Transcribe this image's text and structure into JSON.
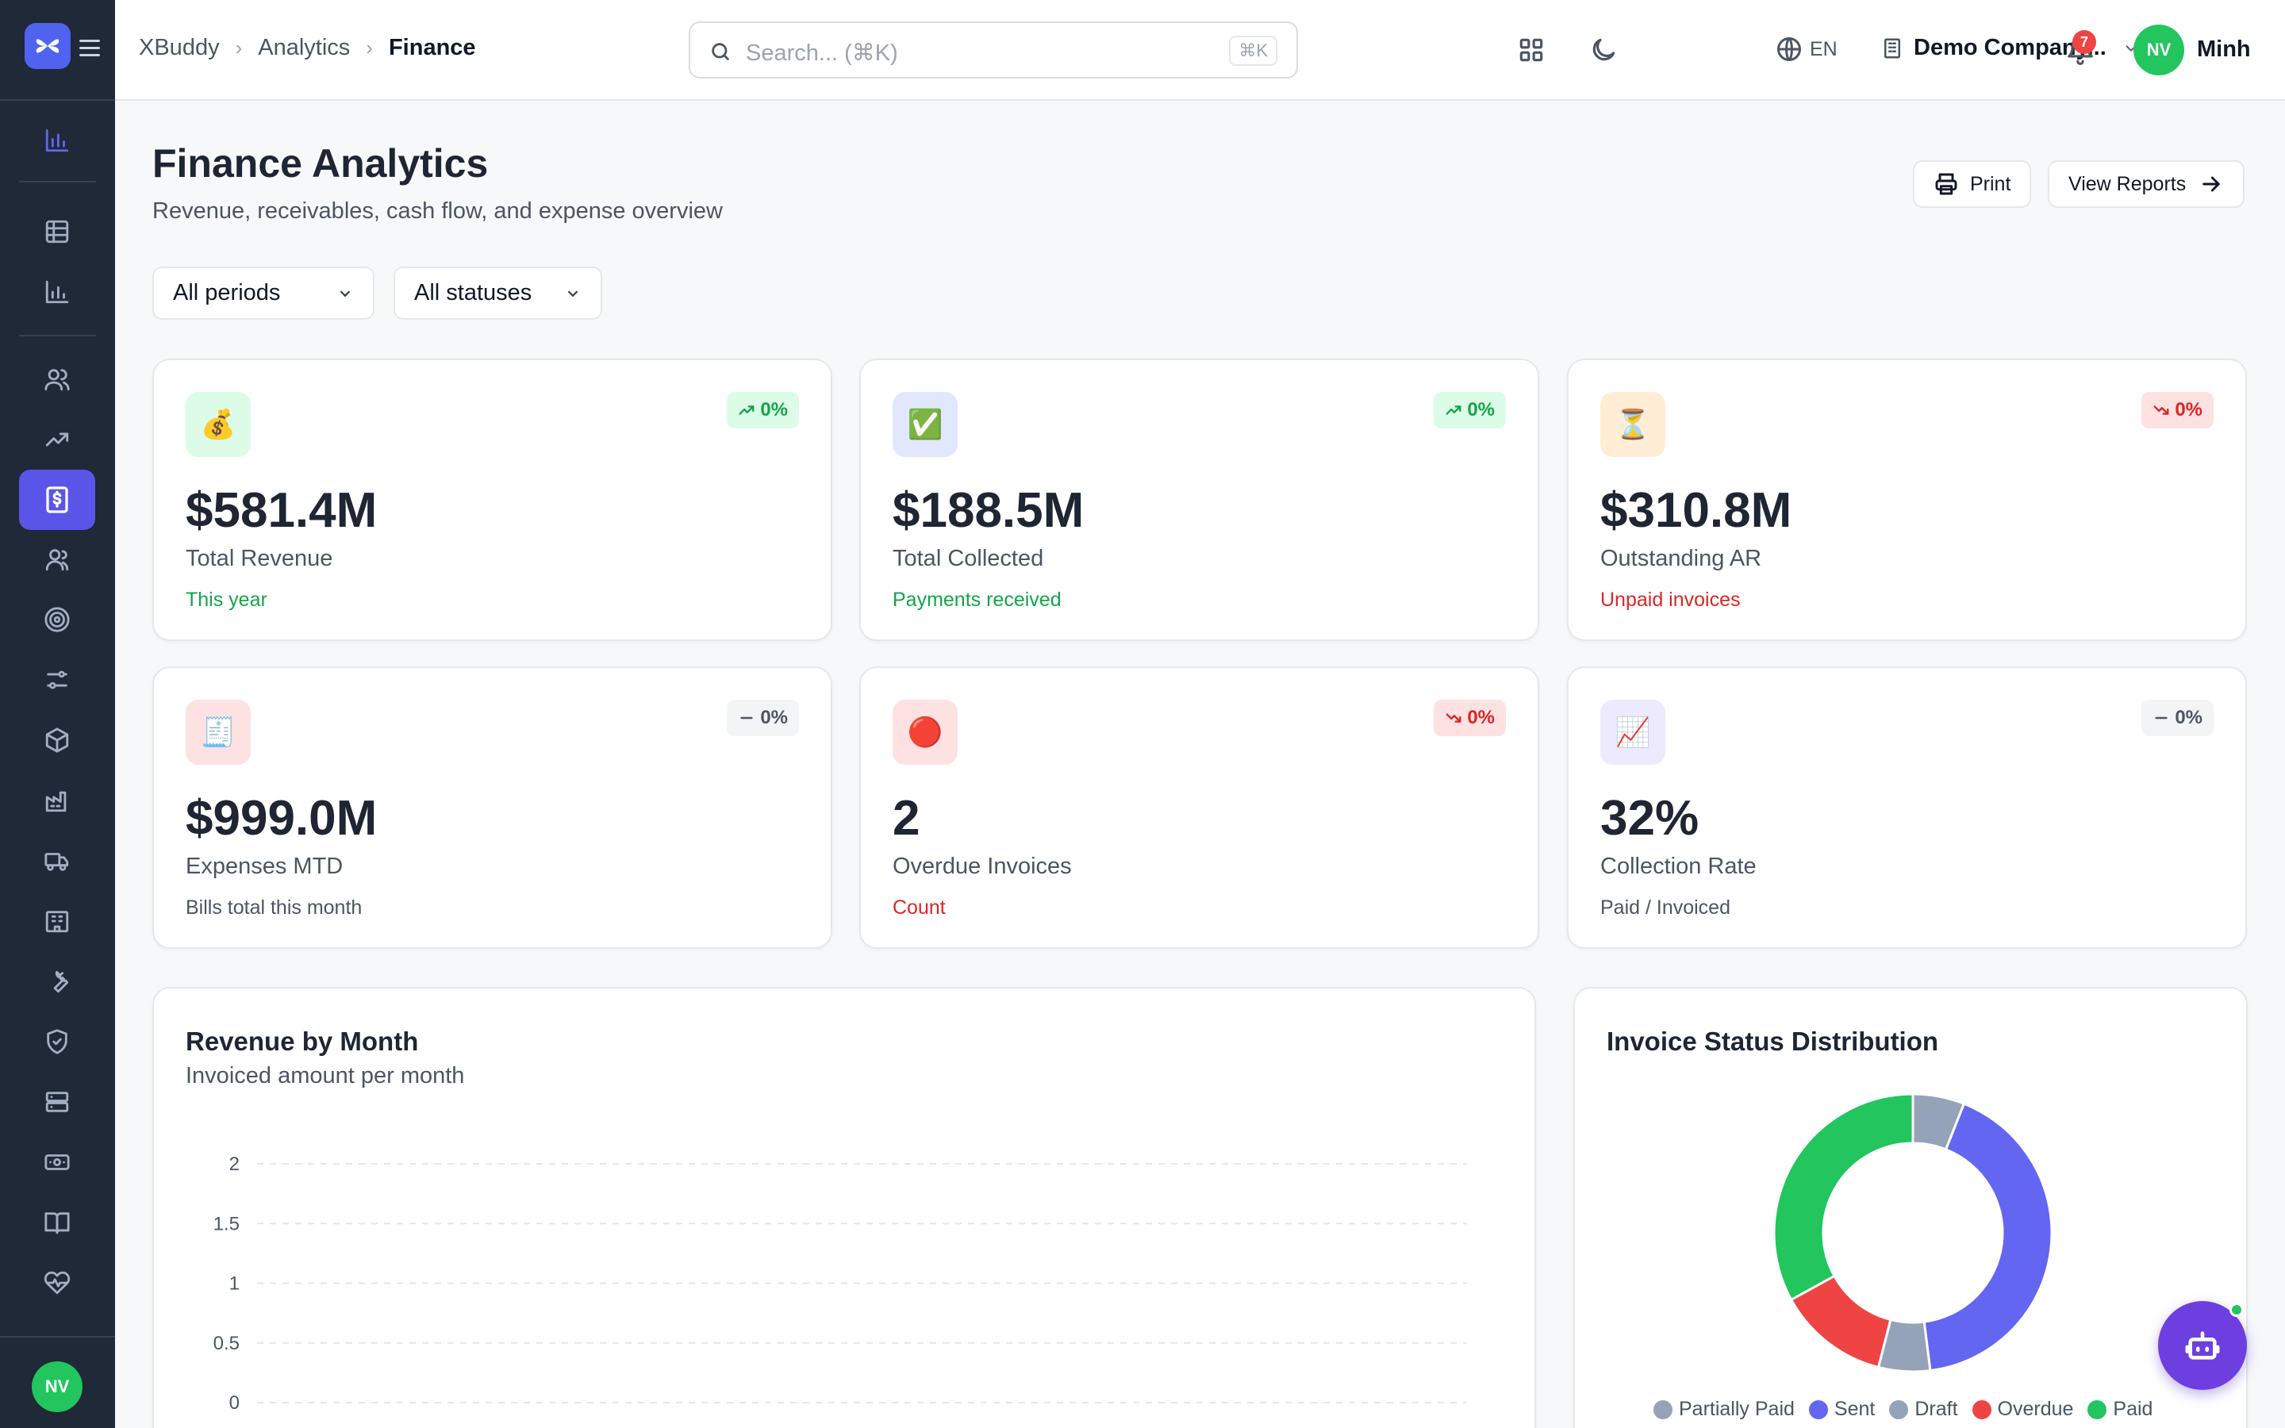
{
  "breadcrumb": [
    "XBuddy",
    "Analytics",
    "Finance"
  ],
  "search": {
    "placeholder": "Search... (⌘K)",
    "shortcut": "⌘K"
  },
  "topbar": {
    "language": "EN",
    "company": "Demo Company...",
    "notifications_count": "7",
    "user_initials": "NV",
    "user_name": "Minh"
  },
  "sidebar": {
    "user_initials": "NV",
    "icons": [
      "bar-chart",
      "table",
      "bar-chart-2",
      "users",
      "trending-up",
      "finance",
      "user-group",
      "target",
      "sliders",
      "package",
      "factory",
      "truck",
      "building",
      "wrench",
      "shield-check",
      "server",
      "banknote",
      "book-open",
      "heart-pulse"
    ],
    "active": "finance"
  },
  "page": {
    "title": "Finance Analytics",
    "subtitle": "Revenue, receivables, cash flow, and expense overview",
    "print_label": "Print",
    "view_reports_label": "View Reports"
  },
  "filters": {
    "period": "All periods",
    "status": "All statuses"
  },
  "kpis": [
    {
      "icon": "💰",
      "trend": "0%",
      "trend_dir": "up",
      "value": "$581.4M",
      "label": "Total Revenue",
      "note": "This year",
      "note_color": "#16a34a",
      "icon_bg": "#dcfce7"
    },
    {
      "icon": "✅",
      "trend": "0%",
      "trend_dir": "up",
      "value": "$188.5M",
      "label": "Total Collected",
      "note": "Payments received",
      "note_color": "#16a34a",
      "icon_bg": "#e0e7ff"
    },
    {
      "icon": "⏳",
      "trend": "0%",
      "trend_dir": "down",
      "value": "$310.8M",
      "label": "Outstanding AR",
      "note": "Unpaid invoices",
      "note_color": "#dc2626",
      "icon_bg": "#ffedd5"
    },
    {
      "icon": "🧾",
      "trend": "0%",
      "trend_dir": "flat",
      "value": "$999.0M",
      "label": "Expenses MTD",
      "note": "Bills total this month",
      "note_color": "#4b5563",
      "icon_bg": "#fee2e2"
    },
    {
      "icon": "🔴",
      "trend": "0%",
      "trend_dir": "down",
      "value": "2",
      "label": "Overdue Invoices",
      "note": "Count",
      "note_color": "#dc2626",
      "icon_bg": "#fee2e2"
    },
    {
      "icon": "📈",
      "trend": "0%",
      "trend_dir": "flat",
      "value": "32%",
      "label": "Collection Rate",
      "note": "Paid / Invoiced",
      "note_color": "#4b5563",
      "icon_bg": "#ede9fe"
    }
  ],
  "chart_data": [
    {
      "type": "bar",
      "title": "Revenue by Month",
      "subtitle": "Invoiced amount per month",
      "ylim": [
        0,
        2
      ],
      "yticks": [
        "2",
        "1.5",
        "1",
        "0.5",
        "0"
      ],
      "grid": true
    },
    {
      "type": "pie",
      "title": "Invoice Status Distribution",
      "legend_position": "bottom",
      "series": [
        {
          "name": "Partially Paid",
          "value": 6,
          "color": "#94a3b8"
        },
        {
          "name": "Sent",
          "value": 42,
          "color": "#6366f1"
        },
        {
          "name": "Draft",
          "value": 6,
          "color": "#94a3b8"
        },
        {
          "name": "Overdue",
          "value": 13,
          "color": "#ef4444"
        },
        {
          "name": "Paid",
          "value": 33,
          "color": "#22c55e"
        }
      ]
    }
  ]
}
